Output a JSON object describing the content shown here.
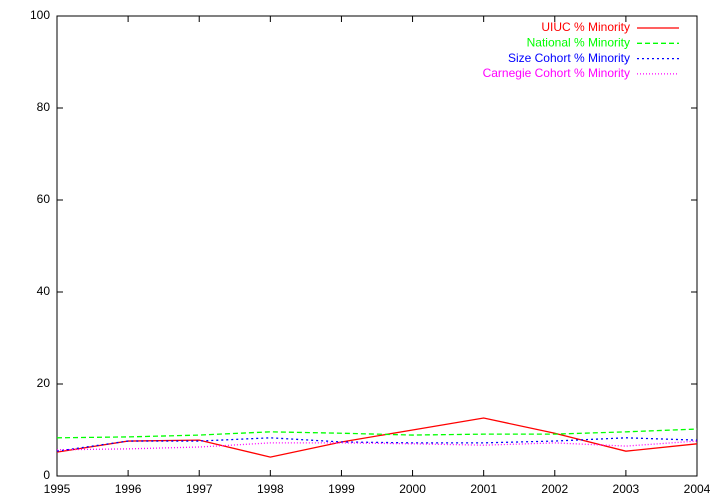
{
  "chart_data": {
    "type": "line",
    "x": [
      1995,
      1996,
      1997,
      1998,
      1999,
      2000,
      2001,
      2002,
      2003,
      2004
    ],
    "xlim": [
      1995,
      2004
    ],
    "xticks": [
      1995,
      1996,
      1997,
      1998,
      1999,
      2000,
      2001,
      2002,
      2003,
      2004
    ],
    "ylim": [
      0,
      100
    ],
    "yticks": [
      0,
      20,
      40,
      60,
      80,
      100
    ],
    "legend": "top-right",
    "series": [
      {
        "name": "UIUC % Minority",
        "color": "#ff0000",
        "linestyle": "solid",
        "values": [
          5.2,
          7.6,
          7.8,
          4.1,
          7.4,
          10.0,
          12.6,
          9.3,
          5.4,
          7.0
        ]
      },
      {
        "name": "National % Minority",
        "color": "#00ff00",
        "linestyle": "dashed",
        "values": [
          8.3,
          8.5,
          8.9,
          9.6,
          9.3,
          8.9,
          9.1,
          9.1,
          9.6,
          10.2
        ]
      },
      {
        "name": "Size Cohort % Minority",
        "color": "#0000ff",
        "linestyle": "dotted",
        "values": [
          5.4,
          7.6,
          7.6,
          8.3,
          7.4,
          7.2,
          7.2,
          7.6,
          8.3,
          7.8
        ]
      },
      {
        "name": "Carnegie Cohort % Minority",
        "color": "#ff00ff",
        "linestyle": "fine-dotted",
        "values": [
          5.7,
          5.9,
          6.3,
          7.2,
          7.2,
          7.0,
          6.7,
          7.2,
          6.5,
          7.6
        ]
      }
    ]
  }
}
